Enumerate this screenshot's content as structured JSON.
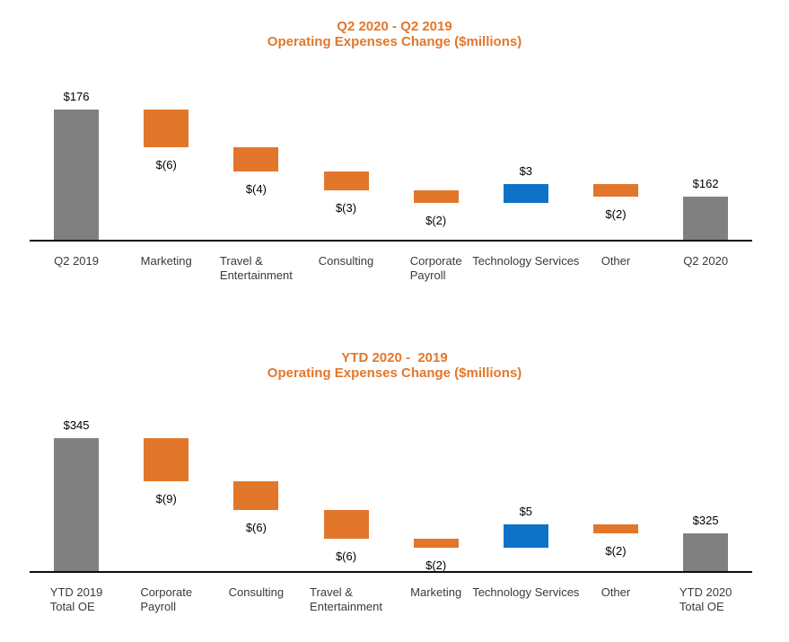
{
  "page": {
    "background": "#ffffff"
  },
  "colors": {
    "total": "#808080",
    "decrease": "#e2772c",
    "increase": "#0e72c6",
    "title": "#e2772c",
    "axis": "#0d0d0d",
    "value_text": "#000000",
    "category_text": "#3a3a3a"
  },
  "chart_data": [
    {
      "type": "waterfall",
      "title": "Q2 2020 - Q2 2019",
      "subtitle": "Operating Expenses Change ($millions)",
      "ylim": [
        155,
        178
      ],
      "legend": "none",
      "grid": false,
      "bars": [
        {
          "category_lines": [
            "Q2 2019"
          ],
          "kind": "total",
          "start": 155,
          "end": 176,
          "value": 176,
          "value_label": "$176",
          "label_position": "above"
        },
        {
          "category_lines": [
            "Marketing"
          ],
          "kind": "decrease",
          "start": 176,
          "end": 170,
          "value": -6,
          "value_label": "$(6)",
          "label_position": "below"
        },
        {
          "category_lines": [
            "Travel &",
            "Entertainment"
          ],
          "kind": "decrease",
          "start": 170,
          "end": 166,
          "value": -4,
          "value_label": "$(4)",
          "label_position": "below"
        },
        {
          "category_lines": [
            "Consulting"
          ],
          "kind": "decrease",
          "start": 166,
          "end": 163,
          "value": -3,
          "value_label": "$(3)",
          "label_position": "below"
        },
        {
          "category_lines": [
            "Corporate",
            "Payroll"
          ],
          "kind": "decrease",
          "start": 163,
          "end": 161,
          "value": -2,
          "value_label": "$(2)",
          "label_position": "below"
        },
        {
          "category_lines": [
            "Technology Services"
          ],
          "kind": "increase",
          "start": 161,
          "end": 164,
          "value": 3,
          "value_label": "$3",
          "label_position": "above"
        },
        {
          "category_lines": [
            "Other"
          ],
          "kind": "decrease",
          "start": 164,
          "end": 162,
          "value": -2,
          "value_label": "$(2)",
          "label_position": "below"
        },
        {
          "category_lines": [
            "Q2 2020"
          ],
          "kind": "total",
          "start": 155,
          "end": 162,
          "value": 162,
          "value_label": "$162",
          "label_position": "above"
        }
      ]
    },
    {
      "type": "waterfall",
      "title": "YTD 2020 -  2019",
      "subtitle": "Operating Expenses Change ($millions)",
      "ylim": [
        317,
        347
      ],
      "legend": "none",
      "grid": false,
      "bars": [
        {
          "category_lines": [
            "YTD 2019",
            "Total OE"
          ],
          "kind": "total",
          "start": 317,
          "end": 345,
          "value": 345,
          "value_label": "$345",
          "label_position": "above"
        },
        {
          "category_lines": [
            "Corporate",
            "Payroll"
          ],
          "kind": "decrease",
          "start": 345,
          "end": 336,
          "value": -9,
          "value_label": "$(9)",
          "label_position": "below"
        },
        {
          "category_lines": [
            "Consulting"
          ],
          "kind": "decrease",
          "start": 336,
          "end": 330,
          "value": -6,
          "value_label": "$(6)",
          "label_position": "below"
        },
        {
          "category_lines": [
            "Travel &",
            "Entertainment"
          ],
          "kind": "decrease",
          "start": 330,
          "end": 324,
          "value": -6,
          "value_label": "$(6)",
          "label_position": "below"
        },
        {
          "category_lines": [
            "Marketing"
          ],
          "kind": "decrease",
          "start": 324,
          "end": 322,
          "value": -2,
          "value_label": "$(2)",
          "label_position": "below"
        },
        {
          "category_lines": [
            "Technology Services"
          ],
          "kind": "increase",
          "start": 322,
          "end": 327,
          "value": 5,
          "value_label": "$5",
          "label_position": "above"
        },
        {
          "category_lines": [
            "Other"
          ],
          "kind": "decrease",
          "start": 327,
          "end": 325,
          "value": -2,
          "value_label": "$(2)",
          "label_position": "below"
        },
        {
          "category_lines": [
            "YTD 2020",
            "Total OE"
          ],
          "kind": "total",
          "start": 317,
          "end": 325,
          "value": 325,
          "value_label": "$325",
          "label_position": "above"
        }
      ]
    }
  ]
}
